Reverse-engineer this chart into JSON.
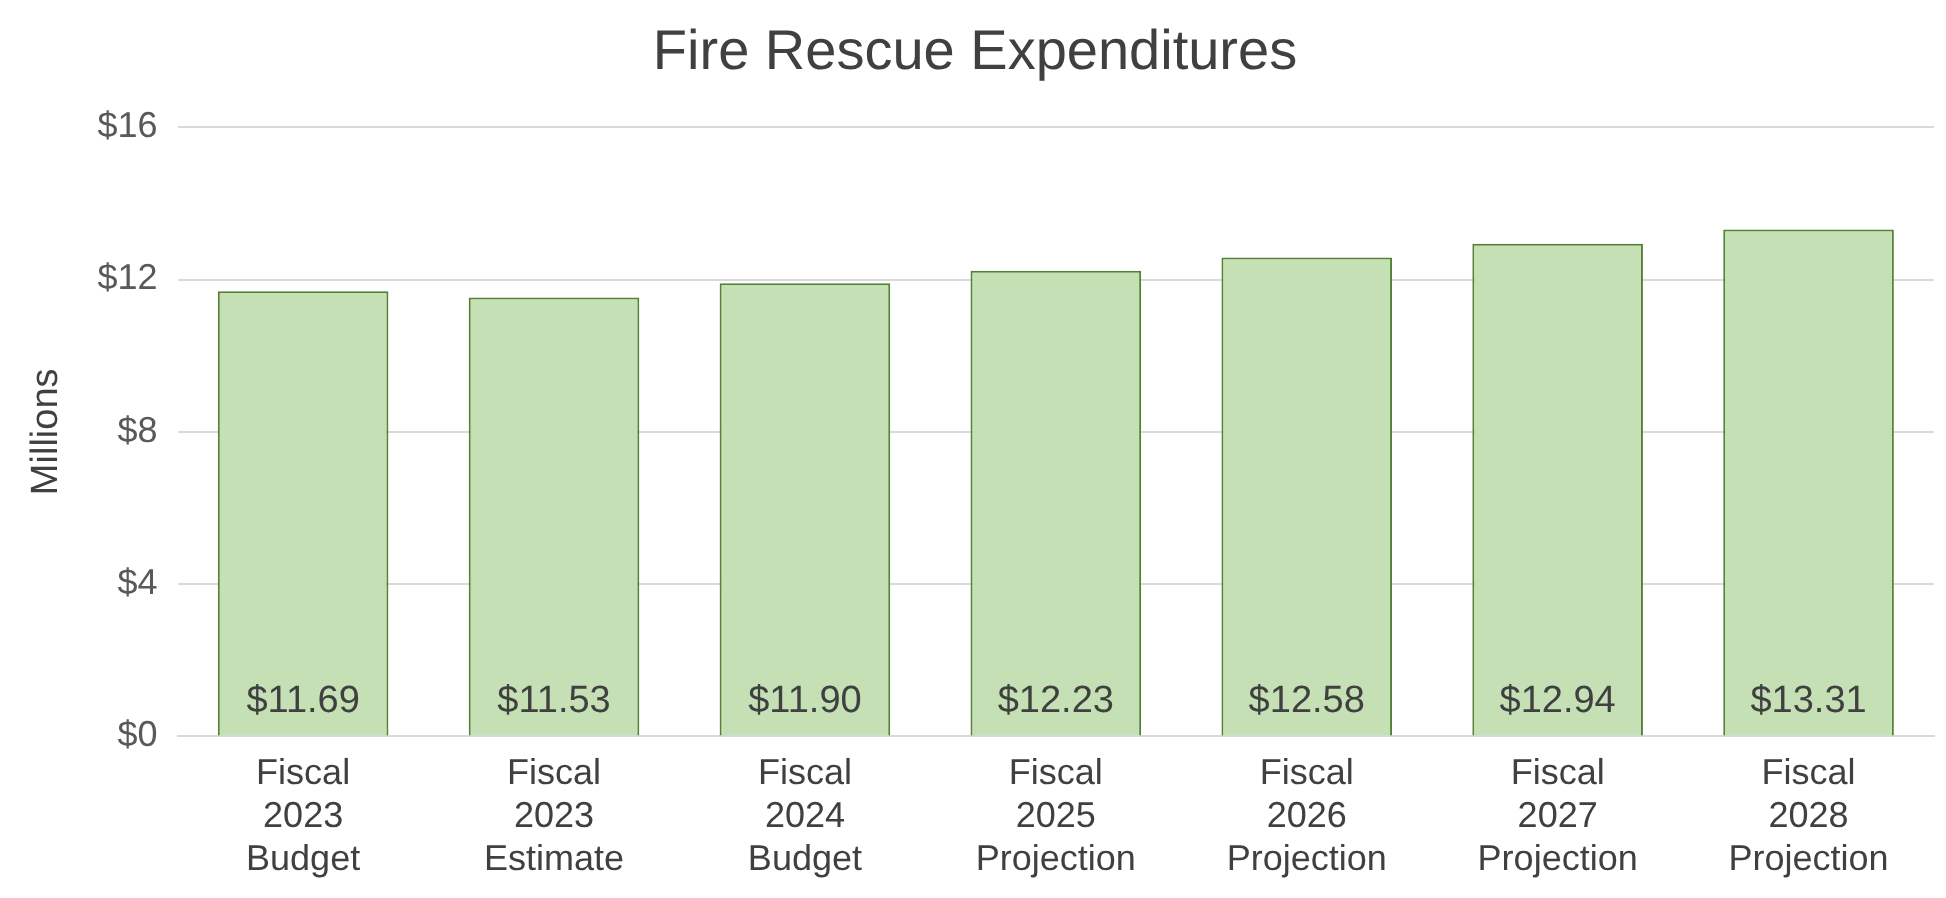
{
  "chart_data": {
    "type": "bar",
    "title": "Fire Rescue Expenditures",
    "ylabel": "Millions",
    "categories": [
      "Fiscal 2023 Budget",
      "Fiscal 2023 Estimate",
      "Fiscal 2024 Budget",
      "Fiscal 2025 Projection",
      "Fiscal 2026 Projection",
      "Fiscal 2027 Projection",
      "Fiscal 2028 Projection"
    ],
    "values": [
      11.69,
      11.53,
      11.9,
      12.23,
      12.58,
      12.94,
      13.31
    ],
    "value_labels": [
      "$11.69",
      "$11.53",
      "$11.90",
      "$12.23",
      "$12.58",
      "$12.94",
      "$13.31"
    ],
    "color": "#c5e0b4",
    "ylim": [
      0,
      16
    ],
    "yticks": [
      {
        "value": 0,
        "label": "$0"
      },
      {
        "value": 4,
        "label": "$4"
      },
      {
        "value": 8,
        "label": "$8"
      },
      {
        "value": 12,
        "label": "$12"
      },
      {
        "value": 16,
        "label": "$16"
      }
    ],
    "grid": "y"
  }
}
